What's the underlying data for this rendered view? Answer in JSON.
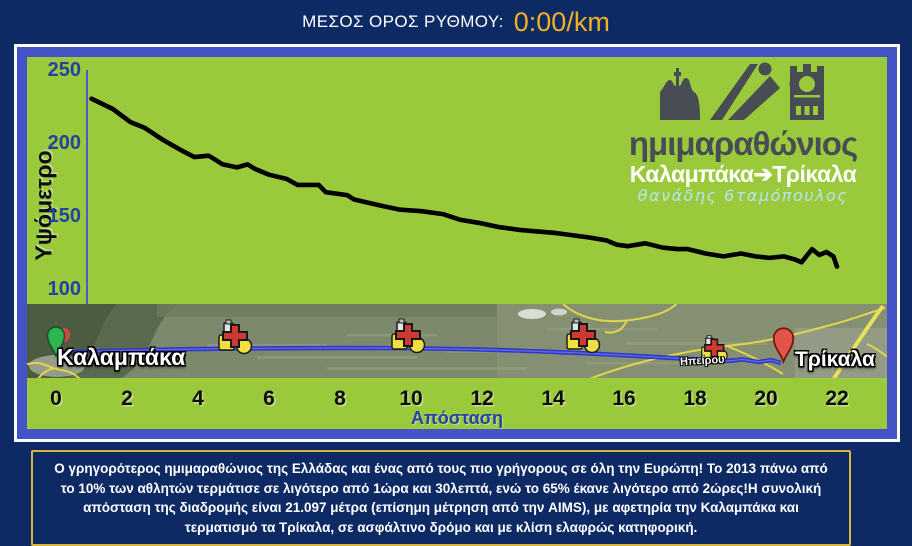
{
  "header": {
    "pace_label": "ΜΕΣΟΣ ΟΡΟΣ ΡΥΘΜΟΥ:",
    "pace_value": "0:00/km"
  },
  "logo": {
    "title": "ημιμαραθώνιος",
    "subtitle": "Καλαμπάκα➔Τρίκαλα",
    "signature": "θανάδης 6ταμόπουλος"
  },
  "map": {
    "start_label": "Καλαμπάκα",
    "end_label": "Τρίκαλα",
    "road_label": "Ηπείρου"
  },
  "footer": {
    "description": "Ο γρηγορότερος ημιμαραθώνιος της Ελλάδας και ένας από τους πιο γρήγορους σε όλη την Ευρώπη! Το 2013 πάνω από το 10% των αθλητών τερμάτισε σε λιγότερο από 1ώρα και 30λεπτά, ενώ το 65% έκανε λιγότερο από 2ώρες!Η συνολική απόσταση της διαδρομής είναι 21.097 μέτρα (επίσημη μέτρηση από την AIMS), με αφετηρία την Καλαμπάκα και τερματισμό τα Τρίκαλα, σε ασφάλτινο δρόμο και με κλίση ελαφρώς κατηφορική."
  },
  "colors": {
    "page_background": "#0e2a64",
    "panel_border_blue": "#4453c5",
    "plot_background": "#9aca3c",
    "pace_value_yellow": "#f0b122",
    "axis_tick_blue": "#24429e",
    "elevation_line": "#000000",
    "footer_border_gold": "#d9b53e",
    "route_blue": "#3038c8",
    "start_pin_green": "#2db44d",
    "end_pin_red": "#e25449"
  },
  "chart_data": {
    "type": "line",
    "title": "",
    "xlabel": "Απόσταση",
    "ylabel": "Υψόμετρο",
    "xlim": [
      0,
      23
    ],
    "ylim": [
      100,
      250
    ],
    "x_ticks": [
      0,
      2,
      4,
      6,
      8,
      10,
      12,
      14,
      16,
      18,
      20,
      22
    ],
    "y_ticks": [
      250,
      200,
      150,
      100
    ],
    "grid": false,
    "legend": false,
    "series": [
      {
        "name": "elevation_profile_m",
        "x": [
          1.0,
          1.6,
          2.1,
          2.5,
          3.0,
          3.5,
          3.9,
          4.3,
          4.7,
          5.1,
          5.4,
          5.6,
          6.0,
          6.5,
          6.8,
          7.4,
          7.6,
          8.2,
          8.4,
          9.1,
          9.7,
          10.3,
          10.9,
          11.4,
          11.9,
          12.5,
          13.1,
          14.1,
          15.0,
          15.5,
          15.8,
          16.1,
          16.6,
          17.1,
          17.5,
          17.8,
          18.3,
          18.8,
          19.3,
          19.7,
          20.1,
          20.5,
          20.8,
          21.0,
          21.3,
          21.5,
          21.7,
          21.9,
          22.0
        ],
        "y": [
          231,
          224,
          215,
          211,
          203,
          196,
          191,
          192,
          186,
          184,
          186,
          183,
          179,
          176,
          172,
          172,
          167,
          165,
          162,
          158,
          155,
          154,
          152,
          148,
          146,
          143,
          141,
          139,
          136,
          134,
          131,
          130,
          132,
          129,
          128,
          128,
          125,
          123,
          125,
          123,
          122,
          123,
          121,
          119,
          128,
          124,
          126,
          123,
          116
        ]
      }
    ]
  }
}
